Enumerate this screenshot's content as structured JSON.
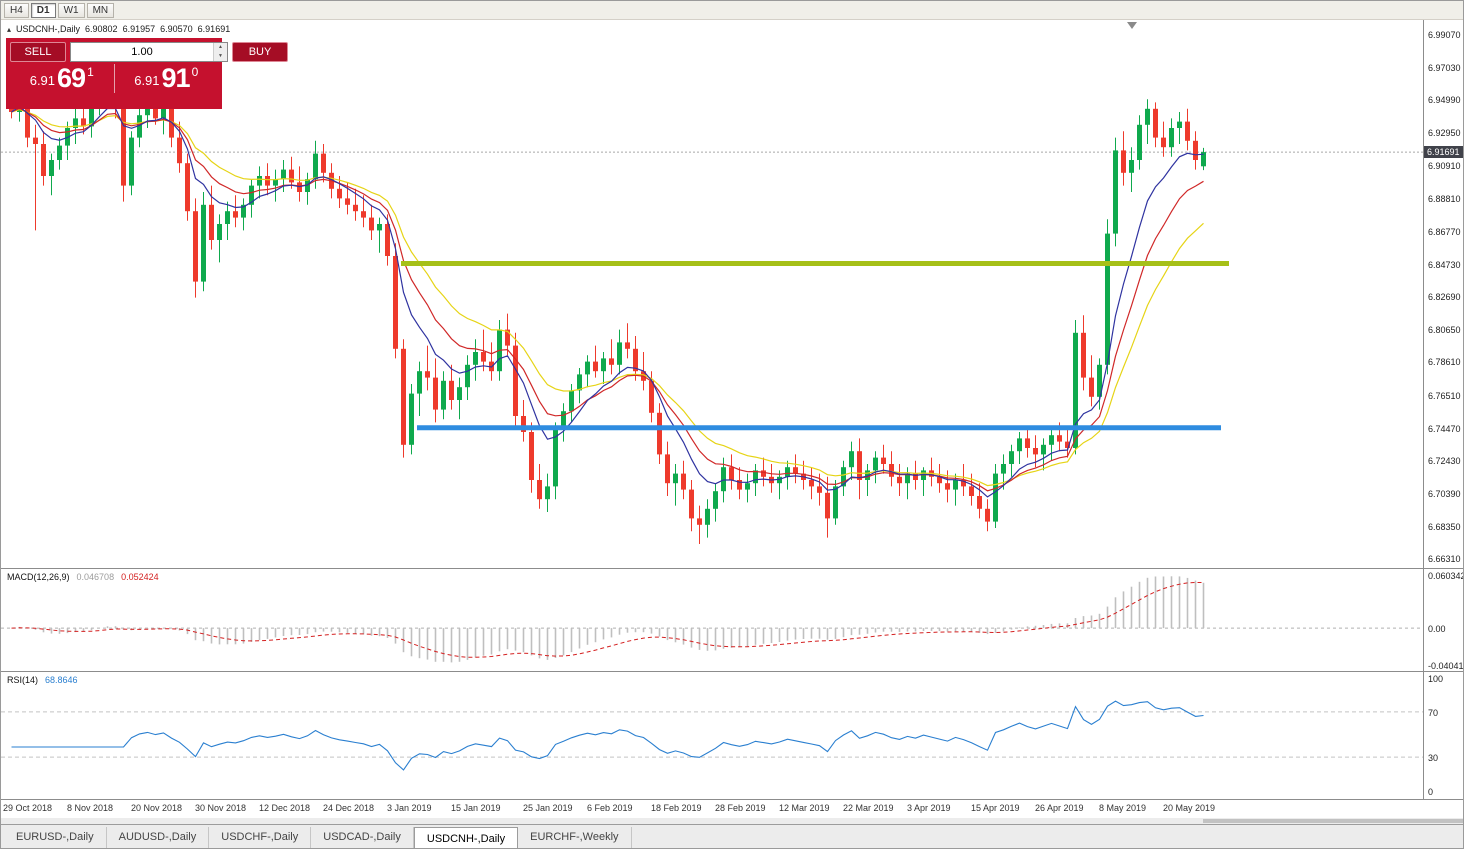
{
  "toolbar": {
    "timeframes": [
      {
        "label": "H4",
        "active": false
      },
      {
        "label": "D1",
        "active": true
      },
      {
        "label": "W1",
        "active": false
      },
      {
        "label": "MN",
        "active": false
      }
    ]
  },
  "chart": {
    "symbol": "USDCNH-,Daily",
    "open": "6.90802",
    "high": "6.91957",
    "low": "6.90570",
    "close": "6.91691",
    "current_price": "6.91691"
  },
  "trade_panel": {
    "sell_label": "SELL",
    "buy_label": "BUY",
    "volume": "1.00",
    "sell_big": "6.91",
    "sell_pips": "69",
    "sell_sup": "1",
    "buy_big": "6.91",
    "buy_pips": "91",
    "buy_sup": "0"
  },
  "macd_panel": {
    "label": "MACD(12,26,9)",
    "main_value": "0.046708",
    "signal_value": "0.052424",
    "axis_ticks": [
      "0.060342",
      "0.00",
      "-0.040415"
    ]
  },
  "rsi_panel": {
    "label": "RSI(14)",
    "value": "68.8646",
    "axis_ticks": [
      "100",
      "70",
      "30",
      "0"
    ]
  },
  "tabs": [
    {
      "label": "EURUSD-,Daily",
      "active": false
    },
    {
      "label": "AUDUSD-,Daily",
      "active": false
    },
    {
      "label": "USDCHF-,Daily",
      "active": false
    },
    {
      "label": "USDCAD-,Daily",
      "active": false
    },
    {
      "label": "USDCNH-,Daily",
      "active": true
    },
    {
      "label": "EURCHF-,Weekly",
      "active": false
    }
  ],
  "colors": {
    "bull": "#0fa94d",
    "bear": "#ee3a2c",
    "panel_red": "#c5112e",
    "button_red": "#a50d25",
    "price_tag_bg": "#40424a",
    "price_line": "#a8a8a8"
  },
  "chart_data": {
    "type": "candlestick",
    "title": "USDCNH-,Daily",
    "y_range": [
      6.657,
      6.9995
    ],
    "current_price": 6.91691,
    "y_ticks": [
      "6.99070",
      "6.97030",
      "6.94990",
      "6.92950",
      "6.90910",
      "6.88810",
      "6.86770",
      "6.84730",
      "6.82690",
      "6.80650",
      "6.78610",
      "6.76510",
      "6.74470",
      "6.72430",
      "6.70390",
      "6.68350",
      "6.66310"
    ],
    "x_axis_labels": [
      {
        "text": "29 Oct 2018",
        "index": 0
      },
      {
        "text": "8 Nov 2018",
        "index": 8
      },
      {
        "text": "20 Nov 2018",
        "index": 16
      },
      {
        "text": "30 Nov 2018",
        "index": 24
      },
      {
        "text": "12 Dec 2018",
        "index": 32
      },
      {
        "text": "24 Dec 2018",
        "index": 40
      },
      {
        "text": "3 Jan 2019",
        "index": 48
      },
      {
        "text": "15 Jan 2019",
        "index": 56
      },
      {
        "text": "25 Jan 2019",
        "index": 65
      },
      {
        "text": "6 Feb 2019",
        "index": 73
      },
      {
        "text": "18 Feb 2019",
        "index": 81
      },
      {
        "text": "28 Feb 2019",
        "index": 89
      },
      {
        "text": "12 Mar 2019",
        "index": 97
      },
      {
        "text": "22 Mar 2019",
        "index": 105
      },
      {
        "text": "3 Apr 2019",
        "index": 113
      },
      {
        "text": "15 Apr 2019",
        "index": 121
      },
      {
        "text": "26 Apr 2019",
        "index": 129
      },
      {
        "text": "8 May 2019",
        "index": 137
      },
      {
        "text": "20 May 2019",
        "index": 145
      }
    ],
    "candles": [
      [
        6.948,
        6.96,
        6.938,
        6.942
      ],
      [
        6.942,
        6.966,
        6.936,
        6.958
      ],
      [
        6.958,
        6.963,
        6.92,
        6.926
      ],
      [
        6.926,
        6.934,
        6.868,
        6.922
      ],
      [
        6.922,
        6.93,
        6.896,
        6.902
      ],
      [
        6.902,
        6.916,
        6.89,
        6.912
      ],
      [
        6.912,
        6.926,
        6.906,
        6.921
      ],
      [
        6.921,
        6.936,
        6.912,
        6.932
      ],
      [
        6.932,
        6.944,
        6.922,
        6.938
      ],
      [
        6.938,
        6.95,
        6.928,
        6.933
      ],
      [
        6.933,
        6.952,
        6.926,
        6.948
      ],
      [
        6.948,
        6.964,
        6.94,
        6.958
      ],
      [
        6.958,
        6.975,
        6.95,
        6.962
      ],
      [
        6.962,
        6.968,
        6.938,
        6.944
      ],
      [
        6.944,
        6.952,
        6.886,
        6.896
      ],
      [
        6.896,
        6.93,
        6.89,
        6.926
      ],
      [
        6.926,
        6.944,
        6.92,
        6.94
      ],
      [
        6.94,
        6.954,
        6.932,
        6.946
      ],
      [
        6.946,
        6.952,
        6.934,
        6.938
      ],
      [
        6.938,
        6.948,
        6.928,
        6.944
      ],
      [
        6.944,
        6.95,
        6.92,
        6.926
      ],
      [
        6.926,
        6.936,
        6.904,
        6.91
      ],
      [
        6.91,
        6.916,
        6.874,
        6.88
      ],
      [
        6.88,
        6.888,
        6.826,
        6.836
      ],
      [
        6.836,
        6.892,
        6.83,
        6.884
      ],
      [
        6.884,
        6.896,
        6.856,
        6.862
      ],
      [
        6.862,
        6.878,
        6.848,
        6.872
      ],
      [
        6.872,
        6.886,
        6.862,
        6.88
      ],
      [
        6.88,
        6.89,
        6.87,
        6.876
      ],
      [
        6.876,
        6.888,
        6.868,
        6.884
      ],
      [
        6.884,
        6.9,
        6.876,
        6.896
      ],
      [
        6.896,
        6.908,
        6.888,
        6.902
      ],
      [
        6.902,
        6.91,
        6.89,
        6.896
      ],
      [
        6.896,
        6.906,
        6.886,
        6.9
      ],
      [
        6.9,
        6.912,
        6.892,
        6.906
      ],
      [
        6.906,
        6.914,
        6.894,
        6.898
      ],
      [
        6.898,
        6.908,
        6.886,
        6.892
      ],
      [
        6.892,
        6.904,
        6.884,
        6.9
      ],
      [
        6.9,
        6.924,
        6.894,
        6.916
      ],
      [
        6.916,
        6.922,
        6.898,
        6.904
      ],
      [
        6.904,
        6.91,
        6.888,
        6.894
      ],
      [
        6.894,
        6.902,
        6.882,
        6.888
      ],
      [
        6.888,
        6.898,
        6.878,
        6.884
      ],
      [
        6.884,
        6.894,
        6.874,
        6.88
      ],
      [
        6.88,
        6.89,
        6.87,
        6.876
      ],
      [
        6.876,
        6.884,
        6.862,
        6.868
      ],
      [
        6.868,
        6.876,
        6.854,
        6.872
      ],
      [
        6.872,
        6.878,
        6.846,
        6.852
      ],
      [
        6.852,
        6.86,
        6.788,
        6.794
      ],
      [
        6.794,
        6.8,
        6.726,
        6.734
      ],
      [
        6.734,
        6.772,
        6.728,
        6.766
      ],
      [
        6.766,
        6.786,
        6.752,
        6.78
      ],
      [
        6.78,
        6.796,
        6.768,
        6.776
      ],
      [
        6.776,
        6.788,
        6.748,
        6.756
      ],
      [
        6.756,
        6.78,
        6.75,
        6.774
      ],
      [
        6.774,
        6.784,
        6.756,
        6.762
      ],
      [
        6.762,
        6.776,
        6.75,
        6.77
      ],
      [
        6.77,
        6.79,
        6.762,
        6.784
      ],
      [
        6.784,
        6.8,
        6.774,
        6.792
      ],
      [
        6.792,
        6.806,
        6.78,
        6.786
      ],
      [
        6.786,
        6.798,
        6.774,
        6.78
      ],
      [
        6.78,
        6.812,
        6.774,
        6.806
      ],
      [
        6.806,
        6.816,
        6.79,
        6.796
      ],
      [
        6.796,
        6.804,
        6.744,
        6.752
      ],
      [
        6.752,
        6.762,
        6.736,
        6.742
      ],
      [
        6.742,
        6.748,
        6.704,
        6.712
      ],
      [
        6.712,
        6.722,
        6.694,
        6.7
      ],
      [
        6.7,
        6.716,
        6.692,
        6.708
      ],
      [
        6.708,
        6.748,
        6.7,
        6.744
      ],
      [
        6.744,
        6.76,
        6.736,
        6.755
      ],
      [
        6.755,
        6.772,
        6.748,
        6.768
      ],
      [
        6.768,
        6.782,
        6.76,
        6.778
      ],
      [
        6.778,
        6.79,
        6.77,
        6.786
      ],
      [
        6.786,
        6.796,
        6.776,
        6.78
      ],
      [
        6.78,
        6.792,
        6.772,
        6.788
      ],
      [
        6.788,
        6.8,
        6.778,
        6.784
      ],
      [
        6.784,
        6.806,
        6.778,
        6.798
      ],
      [
        6.798,
        6.81,
        6.788,
        6.794
      ],
      [
        6.794,
        6.802,
        6.774,
        6.78
      ],
      [
        6.78,
        6.792,
        6.768,
        6.774
      ],
      [
        6.774,
        6.78,
        6.748,
        6.754
      ],
      [
        6.754,
        6.76,
        6.722,
        6.728
      ],
      [
        6.728,
        6.736,
        6.702,
        6.71
      ],
      [
        6.71,
        6.722,
        6.696,
        6.716
      ],
      [
        6.716,
        6.724,
        6.7,
        6.706
      ],
      [
        6.706,
        6.712,
        6.68,
        6.688
      ],
      [
        6.688,
        6.696,
        6.672,
        6.684
      ],
      [
        6.684,
        6.7,
        6.676,
        6.694
      ],
      [
        6.694,
        6.71,
        6.686,
        6.705
      ],
      [
        6.705,
        6.726,
        6.698,
        6.72
      ],
      [
        6.72,
        6.728,
        6.706,
        6.712
      ],
      [
        6.712,
        6.72,
        6.7,
        6.706
      ],
      [
        6.706,
        6.716,
        6.698,
        6.71
      ],
      [
        6.71,
        6.722,
        6.702,
        6.718
      ],
      [
        6.718,
        6.726,
        6.708,
        6.714
      ],
      [
        6.714,
        6.722,
        6.704,
        6.71
      ],
      [
        6.71,
        6.718,
        6.7,
        6.714
      ],
      [
        6.714,
        6.724,
        6.706,
        6.72
      ],
      [
        6.72,
        6.728,
        6.71,
        6.716
      ],
      [
        6.716,
        6.724,
        6.706,
        6.712
      ],
      [
        6.712,
        6.72,
        6.7,
        6.708
      ],
      [
        6.708,
        6.716,
        6.696,
        6.704
      ],
      [
        6.704,
        6.714,
        6.676,
        6.688
      ],
      [
        6.688,
        6.712,
        6.684,
        6.708
      ],
      [
        6.708,
        6.724,
        6.702,
        6.72
      ],
      [
        6.72,
        6.736,
        6.712,
        6.73
      ],
      [
        6.73,
        6.738,
        6.7,
        6.712
      ],
      [
        6.712,
        6.722,
        6.702,
        6.718
      ],
      [
        6.718,
        6.73,
        6.71,
        6.726
      ],
      [
        6.726,
        6.734,
        6.716,
        6.722
      ],
      [
        6.722,
        6.73,
        6.708,
        6.714
      ],
      [
        6.714,
        6.722,
        6.702,
        6.71
      ],
      [
        6.71,
        6.72,
        6.7,
        6.716
      ],
      [
        6.716,
        6.724,
        6.706,
        6.712
      ],
      [
        6.712,
        6.72,
        6.702,
        6.718
      ],
      [
        6.718,
        6.726,
        6.708,
        6.714
      ],
      [
        6.714,
        6.722,
        6.704,
        6.71
      ],
      [
        6.71,
        6.718,
        6.698,
        6.706
      ],
      [
        6.706,
        6.716,
        6.696,
        6.712
      ],
      [
        6.712,
        6.722,
        6.702,
        6.708
      ],
      [
        6.708,
        6.716,
        6.696,
        6.702
      ],
      [
        6.702,
        6.71,
        6.688,
        6.694
      ],
      [
        6.694,
        6.7,
        6.68,
        6.686
      ],
      [
        6.686,
        6.722,
        6.682,
        6.716
      ],
      [
        6.716,
        6.728,
        6.706,
        6.722
      ],
      [
        6.722,
        6.734,
        6.714,
        6.73
      ],
      [
        6.73,
        6.742,
        6.722,
        6.738
      ],
      [
        6.738,
        6.746,
        6.726,
        6.732
      ],
      [
        6.732,
        6.74,
        6.72,
        6.728
      ],
      [
        6.728,
        6.738,
        6.718,
        6.734
      ],
      [
        6.734,
        6.744,
        6.724,
        6.74
      ],
      [
        6.74,
        6.748,
        6.73,
        6.736
      ],
      [
        6.736,
        6.744,
        6.726,
        6.732
      ],
      [
        6.732,
        6.812,
        6.728,
        6.804
      ],
      [
        6.804,
        6.815,
        6.768,
        6.776
      ],
      [
        6.776,
        6.79,
        6.758,
        6.764
      ],
      [
        6.764,
        6.788,
        6.756,
        6.784
      ],
      [
        6.784,
        6.875,
        6.778,
        6.866
      ],
      [
        6.866,
        6.926,
        6.858,
        6.918
      ],
      [
        6.918,
        6.93,
        6.896,
        6.904
      ],
      [
        6.904,
        6.92,
        6.892,
        6.912
      ],
      [
        6.912,
        6.94,
        6.906,
        6.934
      ],
      [
        6.934,
        6.95,
        6.922,
        6.944
      ],
      [
        6.944,
        6.948,
        6.92,
        6.926
      ],
      [
        6.926,
        6.936,
        6.914,
        6.92
      ],
      [
        6.92,
        6.938,
        6.914,
        6.932
      ],
      [
        6.932,
        6.942,
        6.922,
        6.936
      ],
      [
        6.936,
        6.944,
        6.918,
        6.924
      ],
      [
        6.924,
        6.93,
        6.906,
        6.912
      ],
      [
        6.90802,
        6.91957,
        6.9057,
        6.91691
      ]
    ],
    "moving_averages": [
      {
        "name": "ma-fast",
        "period": 8,
        "color": "#2f33a0"
      },
      {
        "name": "ma-mid",
        "period": 13,
        "color": "#d02828"
      },
      {
        "name": "ma-slow",
        "period": 20,
        "color": "#e6d416"
      }
    ],
    "hlines": [
      {
        "price": 6.8473,
        "from_index": 49,
        "to_index": 152.5,
        "color": "#a6c018",
        "width": 5
      },
      {
        "price": 6.7447,
        "from_index": 51,
        "to_index": 151.5,
        "color": "#2e8ce0",
        "width": 5
      }
    ],
    "indicators": {
      "macd": {
        "fast": 12,
        "slow": 26,
        "signal": 9,
        "hist_color": "#bfbfbf",
        "signal_color": "#d42020",
        "y_range": [
          -0.0465,
          0.064
        ]
      },
      "rsi": {
        "period": 14,
        "color": "#2a7fd0",
        "levels": [
          70,
          30
        ],
        "y_range": [
          0,
          100
        ]
      }
    }
  }
}
